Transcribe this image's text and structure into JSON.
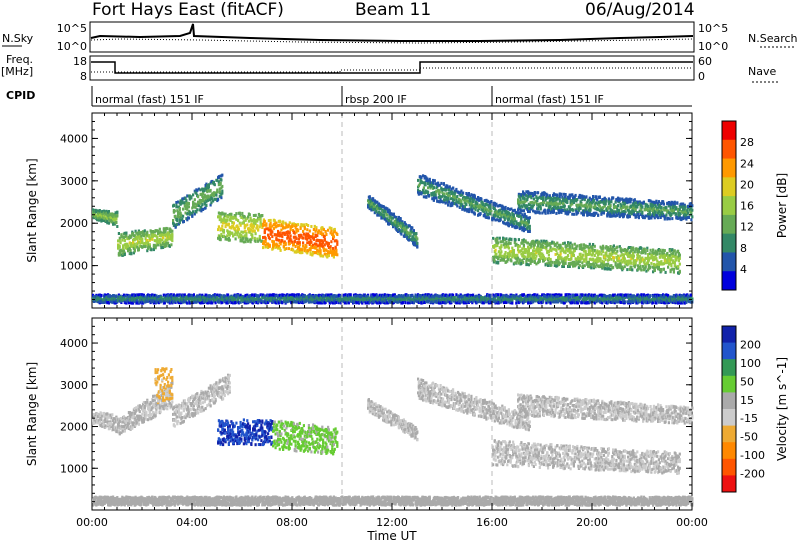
{
  "header": {
    "site": "Fort Hays East (fitACF)",
    "beam": "Beam 11",
    "date": "06/Aug/2014"
  },
  "strips": {
    "nsky_label": "N.Sky",
    "nsky_ticks": [
      "10^5",
      "10^0"
    ],
    "nsearch_label": "N.Search",
    "nsearch_ticks": [
      "10^5",
      "10^0"
    ],
    "freq_label": "Freq.",
    "freq_unit": "[MHz]",
    "freq_ticks": [
      "18",
      "8"
    ],
    "nave_label": "Nave",
    "nave_ticks": [
      "60",
      "0"
    ],
    "cpid_label": "CPID"
  },
  "modes": [
    {
      "label": "normal (fast) 151 IF",
      "start_hour": 0,
      "end_hour": 10
    },
    {
      "label": "rbsp 200 IF",
      "start_hour": 10,
      "end_hour": 16
    },
    {
      "label": "normal (fast) 151 IF",
      "start_hour": 16,
      "end_hour": 24
    }
  ],
  "colors": {
    "power": [
      "#0000dd",
      "#2255aa",
      "#338866",
      "#66aa55",
      "#99cc44",
      "#ddcc22",
      "#ff9900",
      "#ff5500",
      "#ee0000"
    ],
    "velocity": [
      "#ee1111",
      "#ff5500",
      "#ff8800",
      "#eeaa33",
      "#cccccc",
      "#aaaaaa",
      "#66cc33",
      "#339955",
      "#2255cc",
      "#1122aa"
    ]
  },
  "chart_data": [
    {
      "type": "heatmap",
      "title": "",
      "ylabel": "Slant Range [km]",
      "xlabel": "",
      "x_ticks": [
        "00:00",
        "04:00",
        "08:00",
        "12:00",
        "16:00",
        "20:00",
        "00:00"
      ],
      "xlim_hours": [
        0,
        24
      ],
      "ylim": [
        0,
        4600
      ],
      "y_ticks": [
        1000,
        2000,
        3000,
        4000
      ],
      "colorbar_label": "Power [dB]",
      "colorbar_ticks": [
        "28",
        "24",
        "20",
        "16",
        "12",
        "8",
        "4"
      ],
      "colorbar_range": [
        0,
        32
      ],
      "regions": [
        {
          "start_hour": 0.0,
          "end_hour": 1.0,
          "range_start": 2150,
          "range_end": 2350,
          "end_start": 1950,
          "end_end": 2300,
          "level": 14
        },
        {
          "start_hour": 1.0,
          "end_hour": 3.2,
          "range_start": 1250,
          "range_end": 1800,
          "end_start": 1500,
          "end_end": 1950,
          "level": 16
        },
        {
          "start_hour": 3.2,
          "end_hour": 5.2,
          "range_start": 1900,
          "range_end": 2500,
          "end_start": 2650,
          "end_end": 3200,
          "level": 12
        },
        {
          "start_hour": 5.0,
          "end_hour": 6.8,
          "range_start": 1650,
          "range_end": 2300,
          "end_start": 1550,
          "end_end": 2250,
          "level": 18
        },
        {
          "start_hour": 6.8,
          "end_hour": 9.8,
          "range_start": 1450,
          "range_end": 2150,
          "end_start": 1200,
          "end_end": 1900,
          "level": 26
        },
        {
          "start_hour": 11.0,
          "end_hour": 13.0,
          "range_start": 2400,
          "range_end": 2700,
          "end_start": 1450,
          "end_end": 1850,
          "level": 10
        },
        {
          "start_hour": 13.0,
          "end_hour": 17.5,
          "range_start": 2700,
          "range_end": 3200,
          "end_start": 1800,
          "end_end": 2200,
          "level": 10
        },
        {
          "start_hour": 16.0,
          "end_hour": 23.5,
          "range_start": 1100,
          "range_end": 1700,
          "end_start": 850,
          "end_end": 1400,
          "level": 16
        },
        {
          "start_hour": 17.0,
          "end_hour": 24.0,
          "range_start": 2300,
          "range_end": 2800,
          "end_start": 2100,
          "end_end": 2500,
          "level": 10
        },
        {
          "start_hour": 0.0,
          "end_hour": 24.0,
          "range_start": 150,
          "range_end": 350,
          "end_start": 150,
          "end_end": 350,
          "level": 8
        }
      ]
    },
    {
      "type": "heatmap",
      "title": "",
      "ylabel": "Slant Range [km]",
      "xlabel": "Time UT",
      "x_ticks": [
        "00:00",
        "04:00",
        "08:00",
        "12:00",
        "16:00",
        "20:00",
        "00:00"
      ],
      "xlim_hours": [
        0,
        24
      ],
      "ylim": [
        0,
        4600
      ],
      "y_ticks": [
        1000,
        2000,
        3000,
        4000
      ],
      "colorbar_label": "Velocity [m s^-1]",
      "colorbar_ticks": [
        "200",
        "100",
        "50",
        "15",
        "-15",
        "-50",
        "-100",
        "-200"
      ],
      "colorbar_range": [
        -250,
        250
      ],
      "regions": [
        {
          "start_hour": 0.0,
          "end_hour": 1.0,
          "range_start": 2100,
          "range_end": 2400,
          "end_start": 1900,
          "end_end": 2300,
          "level": 0
        },
        {
          "start_hour": 1.0,
          "end_hour": 3.2,
          "range_start": 1800,
          "range_end": 2200,
          "end_start": 2500,
          "end_end": 3100,
          "level": 0
        },
        {
          "start_hour": 2.5,
          "end_hour": 3.2,
          "range_start": 2600,
          "range_end": 3400,
          "end_start": 2700,
          "end_end": 3500,
          "level": -60
        },
        {
          "start_hour": 3.2,
          "end_hour": 5.5,
          "range_start": 2000,
          "range_end": 2500,
          "end_start": 2800,
          "end_end": 3300,
          "level": 0
        },
        {
          "start_hour": 5.0,
          "end_hour": 7.2,
          "range_start": 1600,
          "range_end": 2200,
          "end_start": 1600,
          "end_end": 2200,
          "level": 200
        },
        {
          "start_hour": 7.2,
          "end_hour": 9.8,
          "range_start": 1500,
          "range_end": 2200,
          "end_start": 1350,
          "end_end": 2000,
          "level": 60
        },
        {
          "start_hour": 11.0,
          "end_hour": 13.0,
          "range_start": 2400,
          "range_end": 2700,
          "end_start": 1700,
          "end_end": 2000,
          "level": 0
        },
        {
          "start_hour": 13.0,
          "end_hour": 17.5,
          "range_start": 2700,
          "range_end": 3200,
          "end_start": 1900,
          "end_end": 2300,
          "level": 0
        },
        {
          "start_hour": 16.0,
          "end_hour": 23.5,
          "range_start": 1100,
          "range_end": 1700,
          "end_start": 900,
          "end_end": 1400,
          "level": 0
        },
        {
          "start_hour": 17.0,
          "end_hour": 24.0,
          "range_start": 2300,
          "range_end": 2800,
          "end_start": 2100,
          "end_end": 2500,
          "level": 0
        },
        {
          "start_hour": 0.0,
          "end_hour": 24.0,
          "range_start": 150,
          "range_end": 350,
          "end_start": 150,
          "end_end": 350,
          "level": 30
        }
      ]
    }
  ]
}
